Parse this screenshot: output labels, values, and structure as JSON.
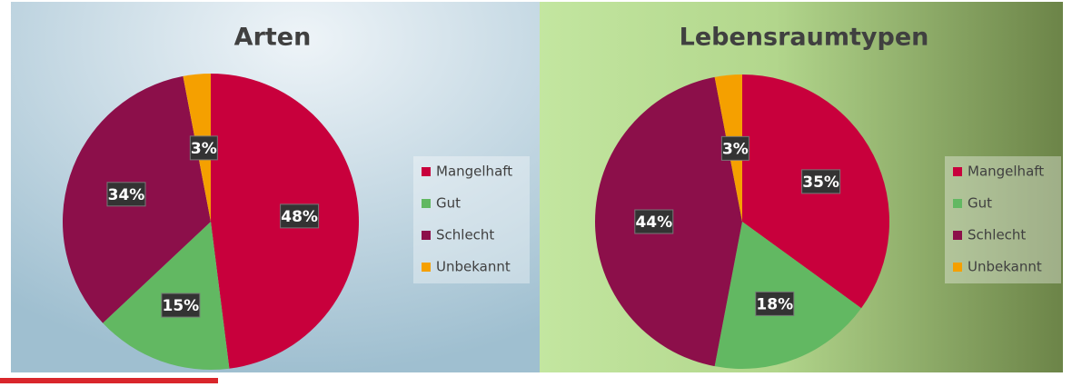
{
  "chart_data": [
    {
      "type": "pie",
      "title": "Arten",
      "categories": [
        "Mangelhaft",
        "Gut",
        "Schlecht",
        "Unbekannt"
      ],
      "values": [
        48,
        15,
        34,
        3
      ],
      "value_labels": [
        "48%",
        "15%",
        "34%",
        "3%"
      ],
      "colors": [
        "#c8003c",
        "#62b862",
        "#8c0f4a",
        "#f5a000"
      ],
      "legend": "right"
    },
    {
      "type": "pie",
      "title": "Lebensraumtypen",
      "categories": [
        "Mangelhaft",
        "Gut",
        "Schlecht",
        "Unbekannt"
      ],
      "values": [
        35,
        18,
        44,
        3
      ],
      "value_labels": [
        "35%",
        "18%",
        "44%",
        "3%"
      ],
      "colors": [
        "#c8003c",
        "#62b862",
        "#8c0f4a",
        "#f5a000"
      ],
      "legend": "right"
    }
  ]
}
